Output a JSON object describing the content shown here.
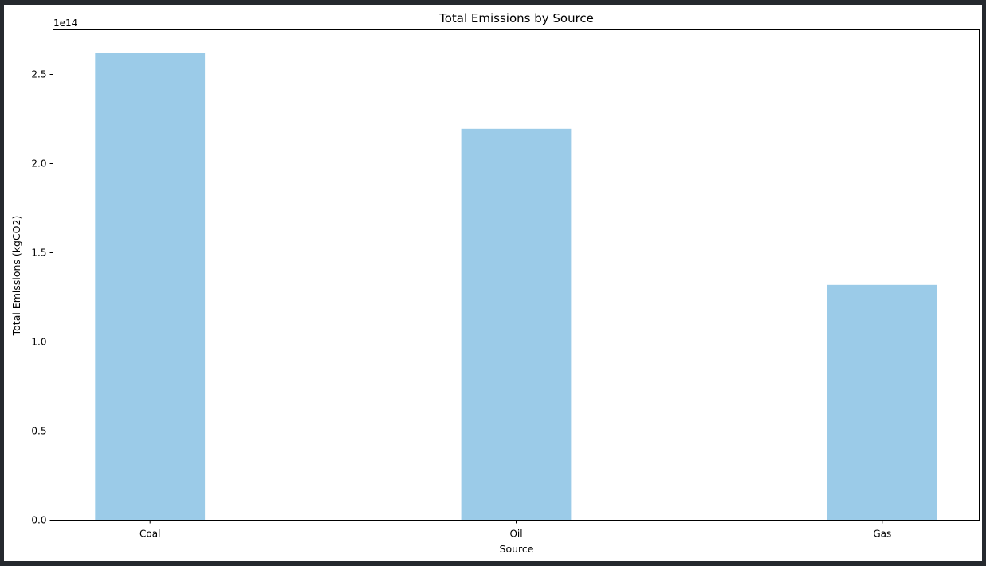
{
  "chart_data": {
    "type": "bar",
    "title": "Total Emissions by Source",
    "xlabel": "Source",
    "ylabel": "Total Emissions (kgCO2)",
    "offset_text": "1e14",
    "categories": [
      "Coal",
      "Oil",
      "Gas"
    ],
    "values": [
      262000000000000.0,
      219500000000000.0,
      132000000000000.0
    ],
    "ylim": [
      0,
      275000000000000.0
    ],
    "yticks": [
      0,
      50000000000000.0,
      100000000000000.0,
      150000000000000.0,
      200000000000000.0,
      250000000000000.0
    ],
    "ytick_labels": [
      "0.0",
      "0.5",
      "1.0",
      "1.5",
      "2.0",
      "2.5"
    ],
    "bar_color": "#9bcbe8",
    "grid": false,
    "legend": "none"
  }
}
